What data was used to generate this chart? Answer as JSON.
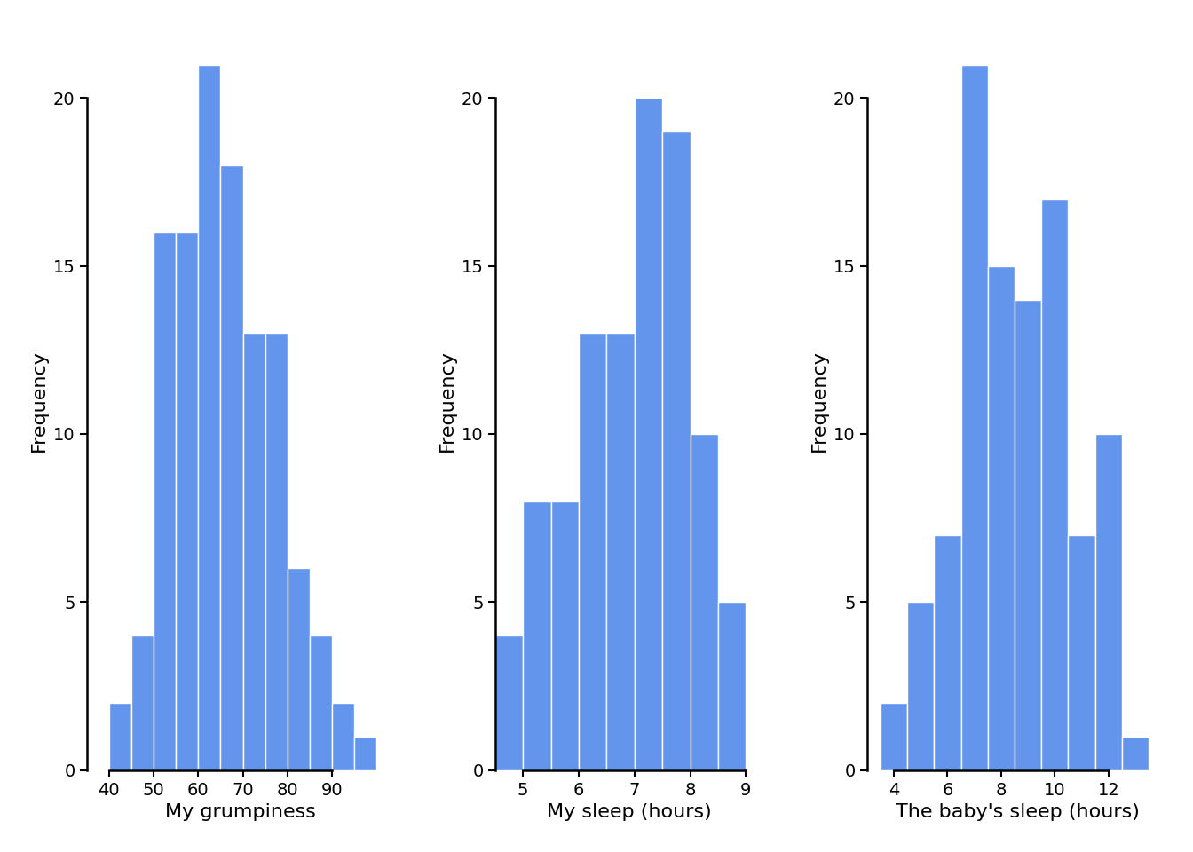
{
  "bar_color": "#6495ED",
  "background_color": "#ffffff",
  "plots": [
    {
      "xlabel": "My grumpiness",
      "ylabel": "Frequency",
      "bin_edges": [
        40,
        45,
        50,
        55,
        60,
        65,
        70,
        75,
        80,
        85,
        90,
        95,
        100
      ],
      "counts": [
        2,
        4,
        16,
        16,
        21,
        18,
        13,
        13,
        6,
        4,
        2,
        1
      ],
      "xlim": [
        37,
        102
      ],
      "ylim": [
        0,
        22
      ],
      "yticks": [
        0,
        5,
        10,
        15,
        20
      ],
      "xticks": [
        40,
        50,
        60,
        70,
        80,
        90
      ]
    },
    {
      "xlabel": "My sleep (hours)",
      "ylabel": "Frequency",
      "bin_edges": [
        4.5,
        5.0,
        5.5,
        6.0,
        6.5,
        7.0,
        7.5,
        8.0,
        8.5,
        9.0
      ],
      "counts": [
        4,
        8,
        8,
        13,
        13,
        20,
        19,
        10,
        5
      ],
      "xlim": [
        4.3,
        9.5
      ],
      "ylim": [
        0,
        22
      ],
      "yticks": [
        0,
        5,
        10,
        15,
        20
      ],
      "xticks": [
        5,
        6,
        7,
        8,
        9
      ]
    },
    {
      "xlabel": "The baby's sleep (hours)",
      "ylabel": "Frequency",
      "bin_edges": [
        3.5,
        4.5,
        5.5,
        6.5,
        7.5,
        8.5,
        9.5,
        10.5,
        11.5,
        12.5,
        13.5
      ],
      "counts": [
        2,
        5,
        7,
        21,
        15,
        14,
        17,
        7,
        10,
        1
      ],
      "xlim": [
        3.2,
        14.0
      ],
      "ylim": [
        0,
        22
      ],
      "yticks": [
        0,
        5,
        10,
        15,
        20
      ],
      "xticks": [
        4,
        6,
        8,
        10,
        12
      ]
    }
  ],
  "figure_bg": "#ffffff",
  "tick_labelsize": 14,
  "axis_labelsize": 16
}
